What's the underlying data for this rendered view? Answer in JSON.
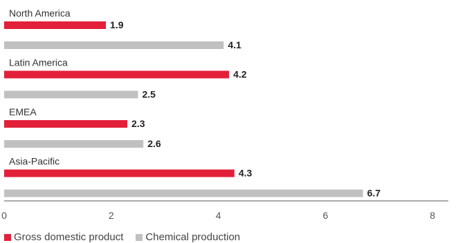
{
  "chart_data": {
    "type": "bar",
    "orientation": "horizontal",
    "categories": [
      "North America",
      "Latin America",
      "EMEA",
      "Asia-Pacific"
    ],
    "series": [
      {
        "name": "Gross domestic product",
        "color": "#e3203a",
        "values": [
          1.9,
          4.2,
          2.3,
          4.3
        ]
      },
      {
        "name": "Chemical production",
        "color": "#c0c0c0",
        "values": [
          4.1,
          2.5,
          2.6,
          6.7
        ]
      }
    ],
    "xlim": [
      0,
      8
    ],
    "xticks": [
      "0",
      "2",
      "4",
      "6",
      "8"
    ],
    "title": "",
    "xlabel": "",
    "ylabel": "",
    "grid": false,
    "legend_position": "bottom-left"
  }
}
